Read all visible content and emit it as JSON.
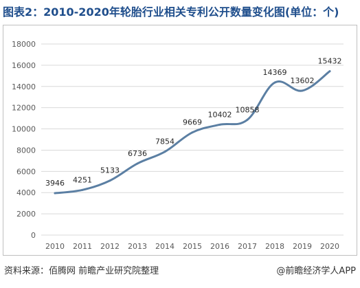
{
  "header": {
    "title": "图表2：2010-2020年轮胎行业相关专利公开数量变化图(单位：个)"
  },
  "footer": {
    "source": "资料来源：佰腾网 前瞻产业研究院整理",
    "brand": "@前瞻经济学人APP"
  },
  "colors": {
    "title": "#1f4e8c",
    "line": "#5b7fa3",
    "grid": "#d9d9d9",
    "text": "#595959"
  },
  "chart_data": {
    "type": "line",
    "title": "",
    "xlabel": "",
    "ylabel": "",
    "categories": [
      "2010",
      "2011",
      "2012",
      "2013",
      "2014",
      "2015",
      "2016",
      "2017",
      "2018",
      "2019",
      "2020"
    ],
    "series": [
      {
        "name": "",
        "values": [
          3946,
          4251,
          5133,
          6736,
          7854,
          9669,
          10402,
          10858,
          14369,
          13602,
          15432
        ]
      }
    ],
    "ylim": [
      0,
      18000
    ],
    "yticks": [
      0,
      2000,
      4000,
      6000,
      8000,
      10000,
      12000,
      14000,
      16000,
      18000
    ],
    "grid": true,
    "legend": "none",
    "smooth": true
  }
}
